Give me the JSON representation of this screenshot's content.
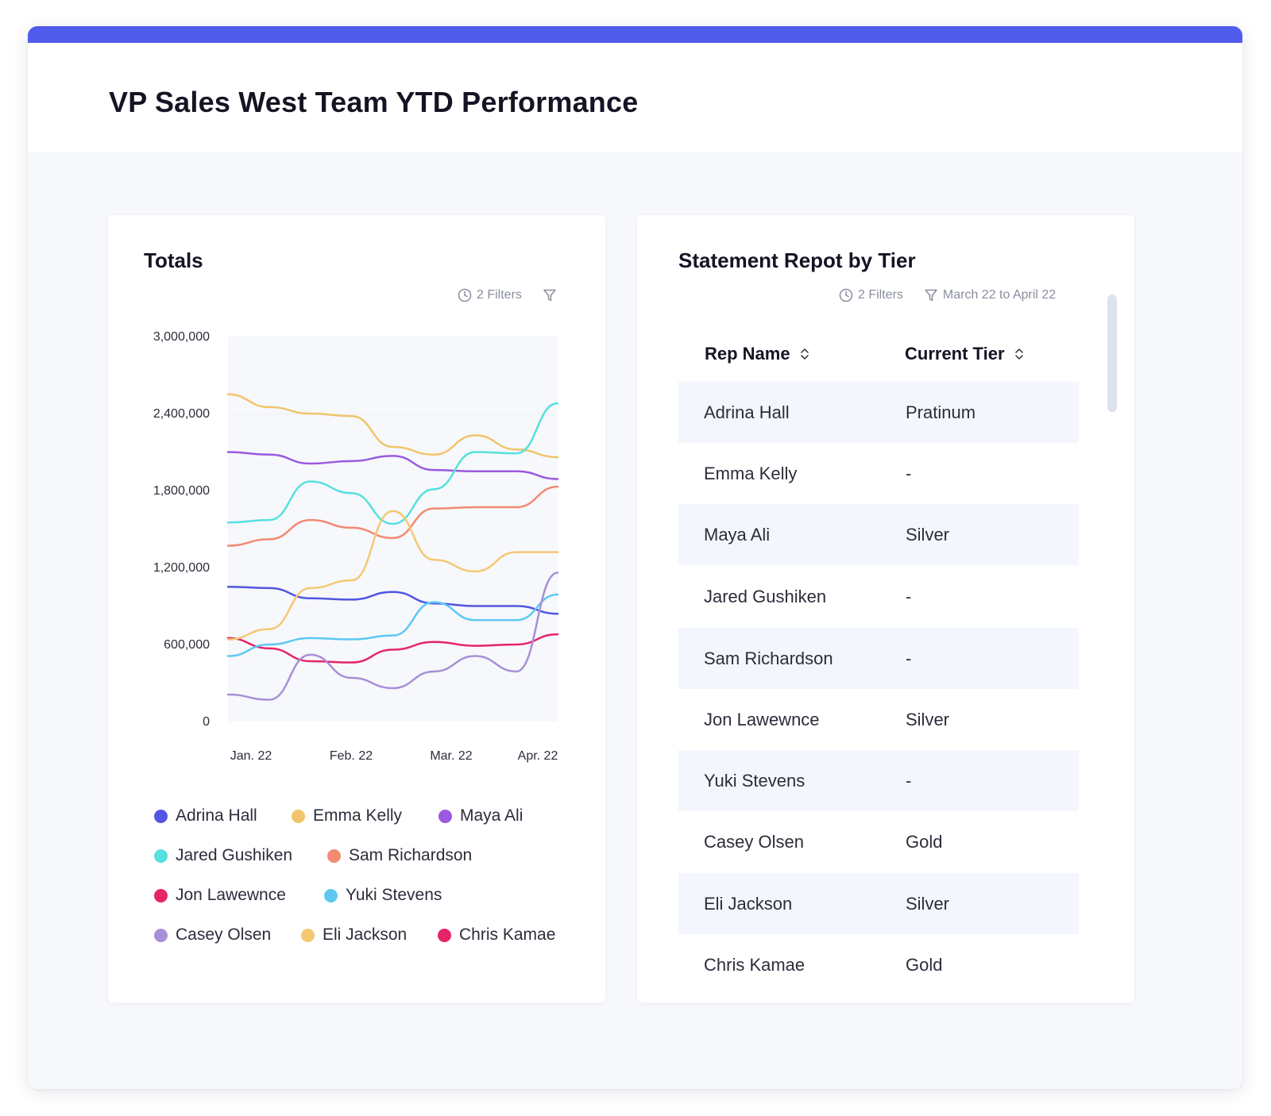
{
  "page": {
    "title": "VP Sales West Team YTD Performance"
  },
  "colors": {
    "accent": "#4f5bea"
  },
  "totals_card": {
    "title": "Totals",
    "filters_label": "2 Filters"
  },
  "chart_data": {
    "type": "line",
    "title": "Totals",
    "categories": [
      "Jan. 22",
      "Feb. 22",
      "Mar. 22",
      "Apr. 22"
    ],
    "x_ticks": [
      "Jan. 22",
      "Feb. 22",
      "Mar. 22",
      "Apr. 22"
    ],
    "y_ticks": [
      "3,000,000",
      "2,400,000",
      "1,800,000",
      "1,200,000",
      "600,000",
      "0"
    ],
    "ylim": [
      0,
      3000000
    ],
    "x_range": [
      0,
      12
    ],
    "grid": false,
    "legend_position": "bottom",
    "series": [
      {
        "name": "Adrina Hall",
        "color": "#5256e0",
        "x": [
          0,
          1.5,
          3,
          4.5,
          6,
          7.5,
          9,
          10.5,
          12
        ],
        "values": [
          1050000,
          1040000,
          960000,
          950000,
          1010000,
          920000,
          900000,
          900000,
          840000
        ]
      },
      {
        "name": "Emma Kelly",
        "color": "#f2c46b",
        "x": [
          0,
          1.5,
          3,
          4.5,
          6,
          7.5,
          9,
          10.5,
          12
        ],
        "values": [
          2550000,
          2450000,
          2400000,
          2380000,
          2140000,
          2080000,
          2230000,
          2120000,
          2060000
        ]
      },
      {
        "name": "Maya Ali",
        "color": "#9b59e0",
        "x": [
          0,
          1.5,
          3,
          4.5,
          6,
          7.5,
          9,
          10.5,
          12
        ],
        "values": [
          2100000,
          2080000,
          2010000,
          2030000,
          2070000,
          1960000,
          1950000,
          1950000,
          1890000
        ]
      },
      {
        "name": "Jared Gushiken",
        "color": "#56e0df",
        "x": [
          0,
          1.5,
          3,
          4.5,
          6,
          7.5,
          9,
          10.5,
          12
        ],
        "values": [
          1550000,
          1570000,
          1870000,
          1780000,
          1540000,
          1810000,
          2100000,
          2090000,
          2480000
        ]
      },
      {
        "name": "Sam Richardson",
        "color": "#f38a72",
        "x": [
          0,
          1.5,
          3,
          4.5,
          6,
          7.5,
          9,
          10.5,
          12
        ],
        "values": [
          1370000,
          1420000,
          1570000,
          1510000,
          1430000,
          1660000,
          1670000,
          1670000,
          1830000
        ]
      },
      {
        "name": "Jon Lawewnce",
        "color": "#e7236a",
        "x": [
          0,
          1.5,
          3,
          4.5,
          6,
          7.5,
          9,
          10.5,
          12
        ],
        "values": [
          650000,
          570000,
          470000,
          460000,
          560000,
          620000,
          590000,
          600000,
          680000
        ]
      },
      {
        "name": "Yuki Stevens",
        "color": "#5ec8f2",
        "x": [
          0,
          1.5,
          3,
          4.5,
          6,
          7.5,
          9,
          10.5,
          12
        ],
        "values": [
          510000,
          600000,
          650000,
          640000,
          670000,
          930000,
          790000,
          790000,
          990000
        ]
      },
      {
        "name": "Casey Olsen",
        "color": "#a88fd6",
        "x": [
          0,
          1.5,
          3,
          4.5,
          6,
          7.5,
          9,
          10.5,
          12
        ],
        "values": [
          210000,
          170000,
          520000,
          340000,
          260000,
          390000,
          510000,
          390000,
          1160000
        ]
      },
      {
        "name": "Eli Jackson",
        "color": "#f4c873",
        "x": [
          0,
          1.5,
          3,
          4.5,
          6,
          7.5,
          9,
          10.5,
          12
        ],
        "values": [
          640000,
          720000,
          1040000,
          1100000,
          1640000,
          1260000,
          1170000,
          1320000,
          1320000
        ]
      },
      {
        "name": "Chris Kamae",
        "color": "#e7236a",
        "x": [],
        "values": []
      }
    ]
  },
  "tier_card": {
    "title": "Statement Repot by Tier",
    "filters_label": "2 Filters",
    "date_range": "March 22 to April 22",
    "columns": [
      "Rep Name",
      "Current Tier"
    ],
    "rows": [
      {
        "name": "Adrina Hall",
        "tier": "Pratinum"
      },
      {
        "name": "Emma Kelly",
        "tier": "-"
      },
      {
        "name": "Maya Ali",
        "tier": "Silver"
      },
      {
        "name": "Jared Gushiken",
        "tier": "-"
      },
      {
        "name": "Sam Richardson",
        "tier": "-"
      },
      {
        "name": "Jon Lawewnce",
        "tier": "Silver"
      },
      {
        "name": "Yuki Stevens",
        "tier": "-"
      },
      {
        "name": "Casey Olsen",
        "tier": "Gold"
      },
      {
        "name": "Eli Jackson",
        "tier": "Silver"
      },
      {
        "name": "Chris Kamae",
        "tier": "Gold"
      }
    ]
  }
}
